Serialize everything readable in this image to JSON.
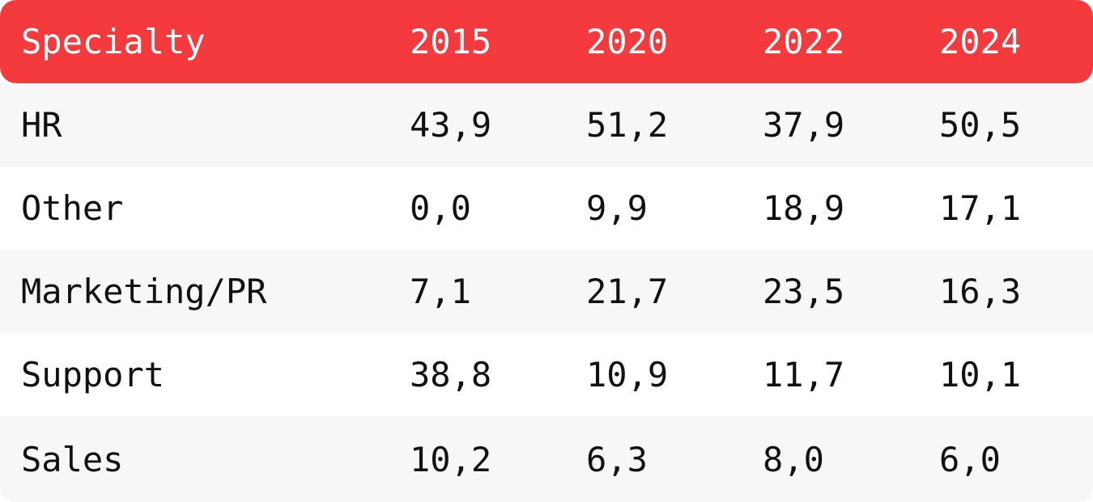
{
  "chart_data": {
    "type": "table",
    "columns": [
      "Specialty",
      "2015",
      "2020",
      "2022",
      "2024"
    ],
    "rows": [
      {
        "label": "HR",
        "values": [
          "43,9",
          "51,2",
          "37,9",
          "50,5"
        ]
      },
      {
        "label": "Other",
        "values": [
          "0,0",
          "9,9",
          "18,9",
          "17,1"
        ]
      },
      {
        "label": "Marketing/PR",
        "values": [
          "7,1",
          "21,7",
          "23,5",
          "16,3"
        ]
      },
      {
        "label": "Support",
        "values": [
          "38,8",
          "10,9",
          "11,7",
          "10,1"
        ]
      },
      {
        "label": "Sales",
        "values": [
          "10,2",
          "6,3",
          "8,0",
          "6,0"
        ]
      }
    ]
  },
  "colors": {
    "header_background": "#f43a3d",
    "header_text": "#ffffff",
    "row_alt_background": "#f7f7f7",
    "text": "#111111"
  }
}
